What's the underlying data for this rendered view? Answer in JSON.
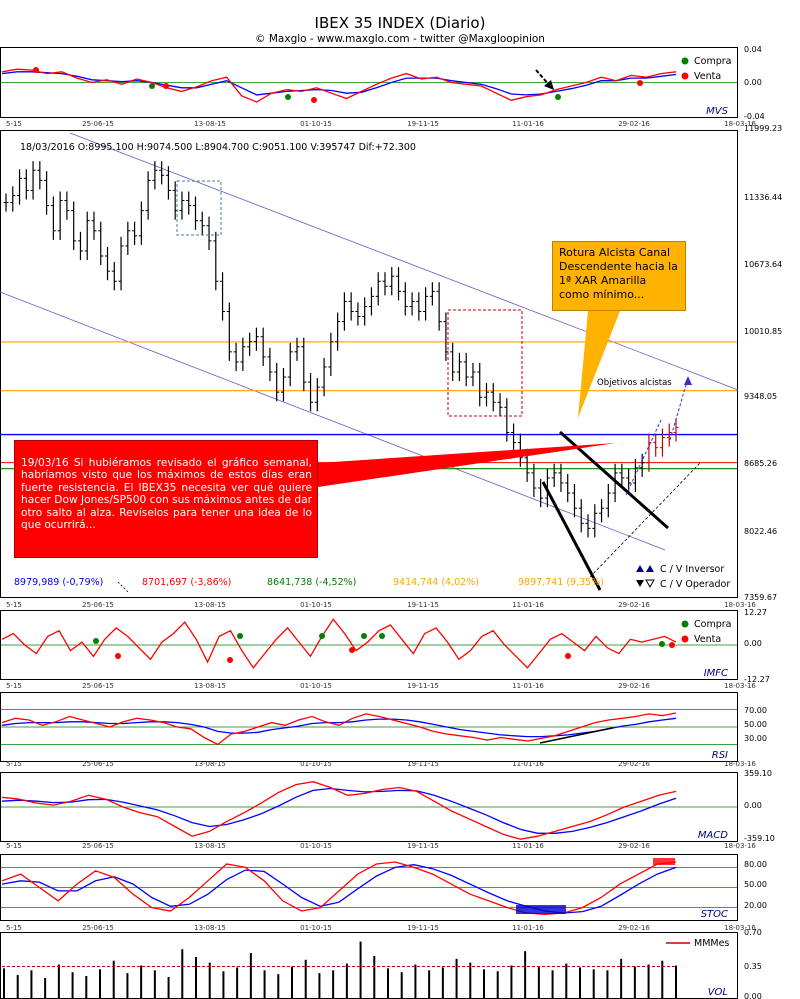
{
  "header": {
    "title": "IBEX 35 INDEX (Diario)",
    "subtitle": "© Maxglo - www.maxglo.com - twitter @Maxgloopinion"
  },
  "ohlc_readout": "18/03/2016  O:8995.100  H:9074.500  L:8904.700  C:9051.100  V:395747  Dif:+72.300",
  "date_ticks": [
    "5-15",
    "25-06-15",
    "13-08-15",
    "01-10-15",
    "19-11-15",
    "11-01-16",
    "29-02-16",
    "18-03-16"
  ],
  "colors": {
    "price_bar": "#000000",
    "channel": "#6a5acd",
    "level_orange": "#ffa500",
    "level_blue": "#0000ff",
    "level_red": "#ff0000",
    "level_green": "#008000",
    "callout_red": "#ff0000",
    "callout_yellow": "#ffb300",
    "fast_line": "#ff0000",
    "slow_line": "#0000ff",
    "buy_dot": "#008000",
    "sell_dot": "#ff0000"
  },
  "annotations": {
    "red_note": "19/03/16 Si hubiéramos revisado el gráfico semanal, habríamos visto que los máximos de estos días eran fuerte resistencia. El IBEX35 necesita ver qué quiere hacer Dow Jones/SP500 con sus máximos antes de dar otro salto al alza. Revíselos para tener una idea de lo que ocurrirá...",
    "yellow_note": "Rotura Alcista Canal Descendente hacia la 1ª XAR Amarilla como mínimo...",
    "objetivos": "Objetivos alcistas"
  },
  "legend_main": {
    "inversor": "C / V Inversor",
    "operador": "C / V Operador"
  },
  "legend_buy": "Compra",
  "legend_sell": "Venta",
  "legend_mm": "MMMes",
  "chart_data": [
    {
      "panel": "main",
      "type": "ohlc",
      "y_ticks": [
        "11999.23",
        "11336.44",
        "10673.64",
        "10010.85",
        "9348.05",
        "8685.26",
        "8022.46",
        "7359.67"
      ],
      "ylim": [
        7359.67,
        11999.23
      ],
      "levels": [
        {
          "label": "8979,989 (-0,79%)",
          "value": 8979.989,
          "color": "#0000ff"
        },
        {
          "label": "8701,697 (-3,86%)",
          "value": 8701.697,
          "color": "#ff0000"
        },
        {
          "label": "8641,738 (-4,52%)",
          "value": 8641.738,
          "color": "#008000"
        },
        {
          "label": "9414,744 (4,02%)",
          "value": 9414.744,
          "color": "#ffa500"
        },
        {
          "label": "9897,741 (9,35%)",
          "value": 9897.741,
          "color": "#ffa500"
        }
      ],
      "close": [
        11280,
        11350,
        11520,
        11400,
        11600,
        11500,
        11250,
        11000,
        11300,
        11200,
        10900,
        10800,
        11100,
        11000,
        10750,
        10600,
        10500,
        10850,
        11000,
        10950,
        11200,
        11500,
        11600,
        11550,
        11400,
        11200,
        11300,
        11250,
        11100,
        11050,
        10900,
        10500,
        10200,
        9800,
        9700,
        9850,
        9900,
        9950,
        9750,
        9600,
        9400,
        9550,
        9800,
        9850,
        9500,
        9300,
        9450,
        9650,
        9900,
        10100,
        10300,
        10200,
        10150,
        10250,
        10350,
        10500,
        10450,
        10550,
        10400,
        10250,
        10300,
        10200,
        10350,
        10400,
        10100,
        9800,
        9600,
        9700,
        9550,
        9600,
        9350,
        9400,
        9300,
        9250,
        9000,
        8900,
        8750,
        8600,
        8450,
        8350,
        8550,
        8600,
        8500,
        8400,
        8250,
        8100,
        8050,
        8200,
        8250,
        8400,
        8600,
        8550,
        8500,
        8650,
        8700,
        8900,
        8850,
        8950,
        9000,
        9050
      ]
    },
    {
      "panel": "MVS",
      "type": "line",
      "y_ticks": [
        "0.04",
        "0.00",
        "-0.04"
      ],
      "ylim": [
        -0.04,
        0.04
      ],
      "series": [
        {
          "values": [
            0.012,
            0.015,
            0.014,
            0.01,
            0.012,
            0.005,
            0.0,
            0.003,
            -0.002,
            0.004,
            0.0,
            -0.006,
            -0.01,
            -0.005,
            0.002,
            0.006,
            -0.015,
            -0.022,
            -0.012,
            -0.008,
            -0.01,
            -0.006,
            -0.012,
            -0.018,
            -0.01,
            -0.002,
            0.005,
            0.01,
            0.004,
            0.006,
            0.0,
            -0.002,
            -0.004,
            -0.012,
            -0.02,
            -0.016,
            -0.014,
            -0.008,
            -0.004,
            0.0,
            0.006,
            0.002,
            0.008,
            0.006,
            0.01,
            0.012
          ]
        },
        {
          "values": [
            0.01,
            0.012,
            0.012,
            0.011,
            0.01,
            0.007,
            0.003,
            0.002,
            0.001,
            0.002,
            0.0,
            -0.003,
            -0.006,
            -0.006,
            -0.002,
            0.002,
            -0.006,
            -0.014,
            -0.012,
            -0.01,
            -0.009,
            -0.008,
            -0.009,
            -0.012,
            -0.011,
            -0.006,
            0.0,
            0.005,
            0.005,
            0.005,
            0.002,
            0.0,
            -0.002,
            -0.007,
            -0.013,
            -0.014,
            -0.013,
            -0.01,
            -0.007,
            -0.003,
            0.002,
            0.002,
            0.005,
            0.005,
            0.007,
            0.009
          ]
        }
      ]
    },
    {
      "panel": "IMFC",
      "type": "line",
      "y_ticks": [
        "12.27",
        "0.00",
        "-12.27"
      ],
      "ylim": [
        -12.27,
        12.27
      ],
      "series": [
        {
          "values": [
            2,
            4,
            0,
            -3,
            3,
            5,
            -2,
            1,
            -4,
            2,
            6,
            3,
            -1,
            -5,
            1,
            4,
            8,
            2,
            -6,
            3,
            5,
            -2,
            -8,
            -3,
            2,
            6,
            1,
            -4,
            3,
            9,
            4,
            -2,
            1,
            5,
            7,
            2,
            -3,
            4,
            6,
            1,
            -5,
            -2,
            3,
            5,
            0,
            -4,
            -8,
            -3,
            2,
            4,
            1,
            -2,
            3,
            -1,
            -3,
            2,
            1,
            2,
            3,
            1
          ]
        }
      ]
    },
    {
      "panel": "RSI",
      "type": "line",
      "y_ticks": [
        "70.00",
        "50.00",
        "30.00"
      ],
      "ylim": [
        10,
        90
      ],
      "series": [
        {
          "values": [
            55,
            60,
            58,
            52,
            56,
            62,
            58,
            54,
            50,
            56,
            60,
            58,
            55,
            50,
            48,
            38,
            30,
            42,
            45,
            50,
            55,
            52,
            58,
            62,
            56,
            52,
            60,
            65,
            62,
            58,
            54,
            50,
            45,
            42,
            40,
            38,
            35,
            38,
            36,
            34,
            37,
            40,
            45,
            50,
            55,
            58,
            60,
            62,
            65,
            63,
            66
          ]
        },
        {
          "values": [
            52,
            54,
            55,
            55,
            55,
            56,
            56,
            55,
            54,
            54,
            55,
            56,
            56,
            55,
            53,
            50,
            45,
            43,
            43,
            44,
            47,
            49,
            51,
            54,
            55,
            55,
            56,
            58,
            59,
            59,
            58,
            56,
            53,
            50,
            47,
            45,
            43,
            41,
            40,
            39,
            39,
            40,
            41,
            43,
            45,
            48,
            51,
            53,
            56,
            58,
            60
          ]
        }
      ]
    },
    {
      "panel": "MACD",
      "type": "line",
      "y_ticks": [
        "359.10",
        "0.00",
        "-359.10"
      ],
      "ylim": [
        -359.1,
        359.1
      ],
      "series": [
        {
          "values": [
            100,
            80,
            40,
            20,
            60,
            120,
            80,
            0,
            -60,
            -100,
            -200,
            -300,
            -250,
            -150,
            -60,
            40,
            150,
            230,
            260,
            200,
            120,
            140,
            180,
            200,
            160,
            60,
            -40,
            -120,
            -200,
            -280,
            -330,
            -300,
            -250,
            -200,
            -150,
            -80,
            0,
            60,
            120,
            160
          ]
        },
        {
          "values": [
            60,
            70,
            60,
            45,
            50,
            75,
            78,
            50,
            10,
            -30,
            -90,
            -160,
            -200,
            -180,
            -130,
            -70,
            10,
            100,
            170,
            190,
            170,
            155,
            160,
            170,
            165,
            120,
            60,
            -10,
            -80,
            -160,
            -230,
            -270,
            -270,
            -250,
            -210,
            -160,
            -100,
            -40,
            30,
            90
          ]
        }
      ]
    },
    {
      "panel": "STOC",
      "type": "line",
      "y_ticks": [
        "80.00",
        "50.00",
        "20.00"
      ],
      "ylim": [
        0,
        100
      ],
      "series": [
        {
          "values": [
            60,
            70,
            50,
            30,
            55,
            75,
            65,
            40,
            20,
            15,
            35,
            60,
            85,
            80,
            60,
            30,
            15,
            20,
            45,
            70,
            85,
            88,
            80,
            70,
            55,
            40,
            30,
            20,
            12,
            10,
            12,
            20,
            35,
            55,
            70,
            85,
            88
          ]
        },
        {
          "values": [
            55,
            60,
            58,
            45,
            45,
            60,
            66,
            55,
            35,
            22,
            25,
            40,
            62,
            76,
            74,
            55,
            35,
            22,
            28,
            48,
            67,
            80,
            84,
            78,
            68,
            55,
            42,
            30,
            22,
            15,
            12,
            14,
            22,
            38,
            55,
            70,
            80
          ]
        }
      ]
    },
    {
      "panel": "VOL",
      "type": "bar",
      "y_ticks": [
        "0.70",
        "0.35",
        "0.00"
      ],
      "ylim": [
        0,
        0.7
      ],
      "values": [
        0.32,
        0.25,
        0.3,
        0.22,
        0.36,
        0.28,
        0.24,
        0.31,
        0.4,
        0.27,
        0.35,
        0.3,
        0.23,
        0.52,
        0.44,
        0.38,
        0.29,
        0.33,
        0.48,
        0.3,
        0.26,
        0.34,
        0.41,
        0.27,
        0.3,
        0.37,
        0.6,
        0.45,
        0.32,
        0.28,
        0.36,
        0.3,
        0.33,
        0.42,
        0.38,
        0.31,
        0.29,
        0.35,
        0.5,
        0.34,
        0.3,
        0.37,
        0.33,
        0.31,
        0.3,
        0.42,
        0.34,
        0.36,
        0.4,
        0.35
      ]
    }
  ]
}
